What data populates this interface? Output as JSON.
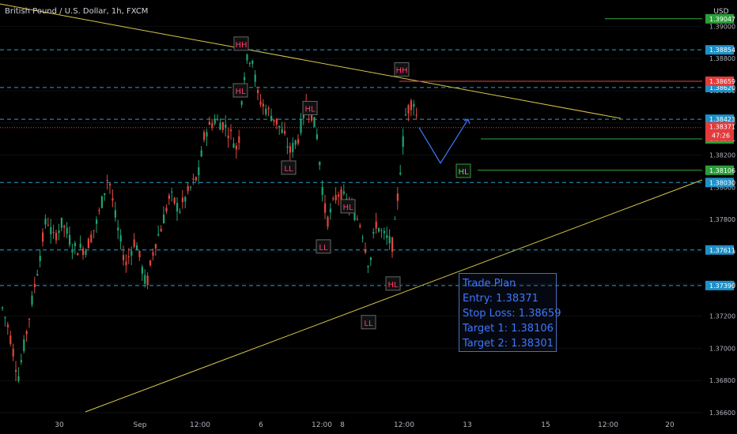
{
  "header": {
    "title": "British Pound / U.S. Dollar, 1h, FXCM",
    "currency": "USD"
  },
  "colors": {
    "background": "#000000",
    "bull": "#1ea472",
    "bear": "#e0473f",
    "trendline": "#d9c84a",
    "dashed_level": "#2d9fd0",
    "red_level": "#e0473f",
    "green_level": "#39a846",
    "label_blue": "#1e90c8",
    "label_red": "#e33b3b",
    "label_green": "#2a9f38",
    "structure_text": "#ff3b6e",
    "hl_green_text": "#5dd36a",
    "projection": "#3f77ff"
  },
  "trade_plan": {
    "title": "Trade Plan",
    "entry": "Entry: 1.38371",
    "stop_loss": "Stop Loss: 1.38659",
    "target1": "Target 1: 1.38106",
    "target2": "Target 2: 1.38301"
  },
  "chart_data": {
    "type": "candlestick",
    "symbol": "British Pound / U.S. Dollar",
    "timeframe": "1h",
    "ylim": [
      1.366,
      1.391
    ],
    "y_ticks": [
      "1.39000",
      "1.38800",
      "1.38600",
      "1.38400",
      "1.38200",
      "1.38000",
      "1.37800",
      "1.37600",
      "1.37400",
      "1.37200",
      "1.37000",
      "1.36800",
      "1.36600"
    ],
    "x_ticks": [
      "30",
      "Sep",
      "12:00",
      "6",
      "12:00",
      "8",
      "12:00",
      "13",
      "15",
      "12:00",
      "20"
    ],
    "price_path": [
      [
        0,
        1.3728
      ],
      [
        10,
        1.3712
      ],
      [
        22,
        1.3682
      ],
      [
        34,
        1.3714
      ],
      [
        46,
        1.3748
      ],
      [
        58,
        1.3782
      ],
      [
        66,
        1.3768
      ],
      [
        78,
        1.3778
      ],
      [
        92,
        1.3762
      ],
      [
        108,
        1.3762
      ],
      [
        122,
        1.3779
      ],
      [
        136,
        1.3808
      ],
      [
        146,
        1.3778
      ],
      [
        158,
        1.3752
      ],
      [
        170,
        1.3768
      ],
      [
        184,
        1.3738
      ],
      [
        194,
        1.3764
      ],
      [
        202,
        1.3774
      ],
      [
        214,
        1.3795
      ],
      [
        226,
        1.3786
      ],
      [
        238,
        1.3798
      ],
      [
        250,
        1.3808
      ],
      [
        258,
        1.3834
      ],
      [
        270,
        1.3842
      ],
      [
        282,
        1.3839
      ],
      [
        292,
        1.3832
      ],
      [
        300,
        1.3822
      ],
      [
        306,
        1.3866
      ],
      [
        312,
        1.388
      ],
      [
        318,
        1.3881
      ],
      [
        324,
        1.3858
      ],
      [
        330,
        1.3852
      ],
      [
        340,
        1.3846
      ],
      [
        350,
        1.384
      ],
      [
        358,
        1.3832
      ],
      [
        366,
        1.3822
      ],
      [
        376,
        1.3831
      ],
      [
        386,
        1.3852
      ],
      [
        392,
        1.3848
      ],
      [
        400,
        1.3832
      ],
      [
        406,
        1.3802
      ],
      [
        412,
        1.3778
      ],
      [
        418,
        1.3786
      ],
      [
        426,
        1.3797
      ],
      [
        436,
        1.3792
      ],
      [
        446,
        1.3785
      ],
      [
        456,
        1.3776
      ],
      [
        466,
        1.375
      ],
      [
        474,
        1.3778
      ],
      [
        484,
        1.377
      ],
      [
        496,
        1.3764
      ],
      [
        500,
        1.3784
      ],
      [
        506,
        1.3816
      ],
      [
        512,
        1.3845
      ],
      [
        518,
        1.3852
      ],
      [
        522,
        1.3854
      ],
      [
        528,
        1.3838
      ]
    ],
    "levels": [
      {
        "price": 1.38854,
        "label": "1.38854",
        "style": "dashed"
      },
      {
        "price": 1.3862,
        "label": "1.38620",
        "style": "dashed"
      },
      {
        "price": 1.38423,
        "label": "1.38423",
        "style": "dashed"
      },
      {
        "price": 1.3803,
        "label": "1.38030",
        "style": "dashed"
      },
      {
        "price": 1.37611,
        "label": "1.37611",
        "style": "dashed"
      },
      {
        "price": 1.3739,
        "label": "1.37390",
        "style": "dashed"
      },
      {
        "price": 1.38659,
        "label": "1.38659",
        "style": "stop_loss"
      },
      {
        "price": 1.39047,
        "label": "1.39047",
        "style": "target"
      },
      {
        "price": 1.38301,
        "label": "1.38301",
        "style": "target"
      },
      {
        "price": 1.38106,
        "label": "1.38106",
        "style": "target"
      }
    ],
    "current_price": {
      "price": 1.38371,
      "label": "1.38371",
      "countdown": "47:26"
    },
    "structure_labels": [
      {
        "text": "HH",
        "price": 1.3889
      },
      {
        "text": "HL",
        "price": 1.386
      },
      {
        "text": "HH",
        "price": 1.3873
      },
      {
        "text": "HL",
        "price": 1.3849
      },
      {
        "text": "HL",
        "price": 1.381
      },
      {
        "text": "LL",
        "price": 1.3812
      },
      {
        "text": "HL",
        "price": 1.3788
      },
      {
        "text": "LL",
        "price": 1.3763
      },
      {
        "text": "HL",
        "price": 1.374
      },
      {
        "text": "LL",
        "price": 1.3716
      }
    ],
    "projection": [
      1.38371,
      1.3815,
      1.38423
    ]
  }
}
